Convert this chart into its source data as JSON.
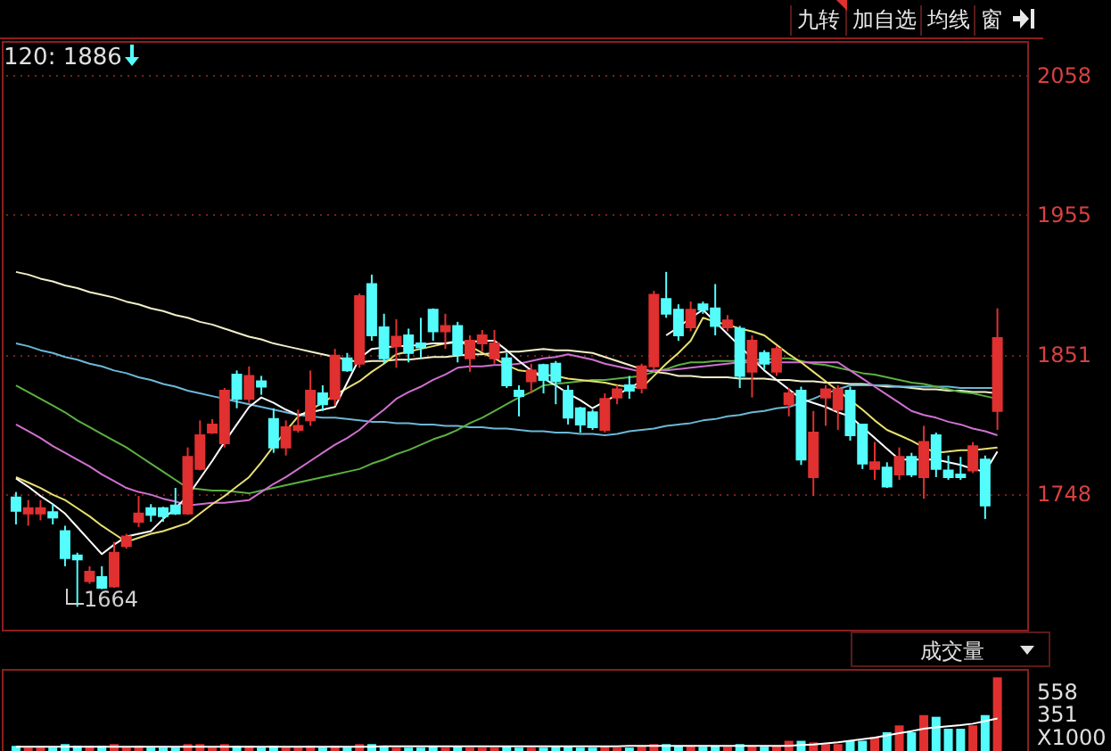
{
  "chart_data": [
    {
      "type": "candlestick",
      "annotations": [
        "120: 1886",
        "九转",
        "加自选",
        "均线",
        "窗",
        "1664"
      ],
      "categories": [
        null,
        null,
        null,
        null,
        null,
        null,
        null,
        null,
        null,
        null,
        null,
        null,
        null,
        null,
        null,
        null,
        null,
        null,
        null,
        null,
        null,
        null,
        null,
        null,
        null,
        null,
        null,
        null,
        null,
        null,
        null,
        null,
        null,
        null,
        null,
        null,
        null,
        null,
        null,
        null,
        null,
        null,
        null,
        null,
        null,
        null,
        null,
        null,
        null,
        null,
        null,
        null,
        null,
        null,
        null,
        null,
        null,
        null,
        null,
        null,
        null,
        null,
        null,
        null,
        null,
        null,
        null,
        null,
        null,
        null,
        null,
        null,
        null,
        null,
        null,
        null,
        null,
        null,
        null,
        null,
        null
      ],
      "ohlc": [
        [
          1745,
          1749,
          1725,
          1735
        ],
        [
          1733,
          1743,
          1724,
          1737
        ],
        [
          1733,
          1743,
          1728,
          1737
        ],
        [
          1734,
          1740,
          1725,
          1730
        ],
        [
          1720,
          1724,
          1694,
          1700
        ],
        [
          1702,
          1704,
          1664,
          1699
        ],
        [
          1683,
          1694,
          1681,
          1690
        ],
        [
          1686,
          1694,
          1677,
          1678
        ],
        [
          1679,
          1712,
          1678,
          1704
        ],
        [
          1709,
          1718,
          1707,
          1716
        ],
        [
          1727,
          1746,
          1723,
          1733
        ],
        [
          1737,
          1740,
          1727,
          1732
        ],
        [
          1737,
          1738,
          1727,
          1731
        ],
        [
          1739,
          1752,
          1732,
          1733
        ],
        [
          1733,
          1782,
          1732,
          1775
        ],
        [
          1766,
          1802,
          1765,
          1791
        ],
        [
          1793,
          1803,
          1792,
          1799
        ],
        [
          1785,
          1826,
          1782,
          1824
        ],
        [
          1836,
          1839,
          1811,
          1818
        ],
        [
          1818,
          1842,
          1815,
          1835
        ],
        [
          1831,
          1835,
          1821,
          1827
        ],
        [
          1803,
          1811,
          1778,
          1782
        ],
        [
          1782,
          1802,
          1776,
          1797
        ],
        [
          1795,
          1810,
          1793,
          1798
        ],
        [
          1802,
          1839,
          1798,
          1824
        ],
        [
          1822,
          1828,
          1809,
          1814
        ],
        [
          1818,
          1855,
          1813,
          1850
        ],
        [
          1848,
          1852,
          1838,
          1839
        ],
        [
          1844,
          1896,
          1841,
          1894
        ],
        [
          1903,
          1910,
          1861,
          1865
        ],
        [
          1871,
          1881,
          1844,
          1848
        ],
        [
          1857,
          1877,
          1841,
          1864
        ],
        [
          1865,
          1870,
          1845,
          1852
        ],
        [
          1859,
          1878,
          1848,
          1856
        ],
        [
          1884,
          1885,
          1861,
          1868
        ],
        [
          1868,
          1881,
          1855,
          1872
        ],
        [
          1872,
          1875,
          1845,
          1851
        ],
        [
          1848,
          1865,
          1838,
          1861
        ],
        [
          1859,
          1869,
          1853,
          1865
        ],
        [
          1848,
          1869,
          1844,
          1859
        ],
        [
          1848,
          1852,
          1826,
          1828
        ],
        [
          1824,
          1828,
          1805,
          1820
        ],
        [
          1831,
          1844,
          1822,
          1839
        ],
        [
          1843,
          1844,
          1822,
          1832
        ],
        [
          1844,
          1846,
          1814,
          1831
        ],
        [
          1824,
          1828,
          1799,
          1804
        ],
        [
          1811,
          1812,
          1793,
          1799
        ],
        [
          1808,
          1810,
          1795,
          1797
        ],
        [
          1795,
          1822,
          1793,
          1818
        ],
        [
          1819,
          1828,
          1814,
          1825
        ],
        [
          1828,
          1835,
          1818,
          1824
        ],
        [
          1826,
          1844,
          1822,
          1842
        ],
        [
          1842,
          1898,
          1839,
          1895
        ],
        [
          1892,
          1912,
          1878,
          1881
        ],
        [
          1884,
          1888,
          1861,
          1865
        ],
        [
          1871,
          1890,
          1868,
          1884
        ],
        [
          1888,
          1890,
          1881,
          1884
        ],
        [
          1885,
          1903,
          1865,
          1872
        ],
        [
          1871,
          1880,
          1868,
          1876
        ],
        [
          1870,
          1872,
          1826,
          1835
        ],
        [
          1838,
          1865,
          1819,
          1861
        ],
        [
          1852,
          1854,
          1840,
          1844
        ],
        [
          1838,
          1857,
          1835,
          1855
        ],
        [
          1814,
          1826,
          1805,
          1822
        ],
        [
          1824,
          1827,
          1769,
          1773
        ],
        [
          1760,
          1809,
          1746,
          1793
        ],
        [
          1819,
          1828,
          1798,
          1825
        ],
        [
          1810,
          1828,
          1795,
          1825
        ],
        [
          1824,
          1827,
          1787,
          1791
        ],
        [
          1799,
          1799,
          1766,
          1770
        ],
        [
          1766,
          1786,
          1758,
          1771
        ],
        [
          1767,
          1771,
          1752,
          1753
        ],
        [
          1762,
          1782,
          1758,
          1775
        ],
        [
          1775,
          1778,
          1760,
          1762
        ],
        [
          1760,
          1798,
          1744,
          1786
        ],
        [
          1791,
          1793,
          1760,
          1766
        ],
        [
          1765,
          1776,
          1758,
          1760
        ],
        [
          1762,
          1775,
          1758,
          1760
        ],
        [
          1765,
          1786,
          1763,
          1783
        ],
        [
          1773,
          1776,
          1729,
          1739
        ],
        [
          1809,
          1885,
          1795,
          1863
        ]
      ],
      "series": [
        {
          "type": "line",
          "color": "#f2f0c8",
          "values": [
            1912,
            1910,
            1907,
            1905,
            1902,
            1900,
            1897,
            1895,
            1893,
            1890,
            1888,
            1885,
            1883,
            1880,
            1878,
            1875,
            1873,
            1870,
            1867,
            1864,
            1862,
            1859,
            1857,
            1855,
            1853,
            1851,
            1849,
            1847,
            1845,
            1846,
            1846,
            1847,
            1847,
            1848,
            1849,
            1849,
            1850,
            1851,
            1851,
            1852,
            1853,
            1853,
            1854,
            1855,
            1854,
            1854,
            1853,
            1852,
            1849,
            1846,
            1843,
            1840,
            1838,
            1837,
            1835,
            1835,
            1834,
            1834,
            1834,
            1833,
            1833,
            1833,
            1832,
            1832,
            1831,
            1831,
            1830,
            1830,
            1829,
            1829,
            1828,
            1827,
            1827,
            1826,
            1825,
            1825,
            1824,
            1824,
            1823,
            1823,
            1822
          ]
        },
        {
          "type": "line",
          "color": "#6cb8d8",
          "values": [
            1859,
            1857,
            1854,
            1852,
            1849,
            1847,
            1844,
            1842,
            1839,
            1837,
            1834,
            1832,
            1829,
            1827,
            1824,
            1822,
            1820,
            1818,
            1816,
            1814,
            1812,
            1810,
            1808,
            1806,
            1805,
            1804,
            1804,
            1803,
            1802,
            1801,
            1801,
            1800,
            1800,
            1799,
            1799,
            1798,
            1798,
            1797,
            1797,
            1796,
            1796,
            1795,
            1794,
            1794,
            1793,
            1793,
            1792,
            1792,
            1791,
            1792,
            1794,
            1795,
            1796,
            1798,
            1799,
            1800,
            1802,
            1803,
            1805,
            1806,
            1808,
            1809,
            1811,
            1812,
            1815,
            1818,
            1822,
            1825,
            1828,
            1828,
            1828,
            1828,
            1827,
            1827,
            1827,
            1827,
            1827,
            1826,
            1826,
            1826,
            1826
          ]
        },
        {
          "type": "line",
          "color": "#5cb040",
          "values": [
            1828,
            1823,
            1818,
            1813,
            1808,
            1802,
            1797,
            1792,
            1787,
            1782,
            1776,
            1770,
            1764,
            1758,
            1752,
            1751,
            1750,
            1750,
            1749,
            1748,
            1750,
            1752,
            1754,
            1756,
            1758,
            1760,
            1762,
            1764,
            1766,
            1770,
            1773,
            1777,
            1780,
            1784,
            1788,
            1791,
            1795,
            1800,
            1804,
            1809,
            1814,
            1819,
            1823,
            1828,
            1829,
            1830,
            1831,
            1832,
            1832,
            1833,
            1834,
            1835,
            1838,
            1840,
            1843,
            1845,
            1845,
            1846,
            1846,
            1846,
            1847,
            1847,
            1848,
            1848,
            1846,
            1844,
            1843,
            1841,
            1839,
            1837,
            1836,
            1834,
            1832,
            1830,
            1829,
            1827,
            1825,
            1823,
            1822,
            1820,
            1818
          ]
        },
        {
          "type": "line",
          "color": "#d070d0",
          "values": [
            1799,
            1794,
            1789,
            1783,
            1778,
            1773,
            1768,
            1762,
            1757,
            1752,
            1749,
            1747,
            1744,
            1742,
            1739,
            1740,
            1741,
            1741,
            1742,
            1743,
            1749,
            1755,
            1760,
            1766,
            1772,
            1778,
            1784,
            1789,
            1795,
            1803,
            1810,
            1818,
            1823,
            1827,
            1832,
            1836,
            1841,
            1842,
            1842,
            1843,
            1843,
            1844,
            1846,
            1848,
            1849,
            1851,
            1849,
            1847,
            1844,
            1842,
            1840,
            1838,
            1839,
            1839,
            1840,
            1841,
            1842,
            1843,
            1844,
            1845,
            1845,
            1845,
            1845,
            1845,
            1845,
            1845,
            1845,
            1845,
            1839,
            1833,
            1827,
            1821,
            1815,
            1809,
            1806,
            1804,
            1801,
            1799,
            1796,
            1794,
            1791
          ]
        },
        {
          "type": "line",
          "color": "#e8e070",
          "values": [
            1760,
            1756,
            1752,
            1747,
            1743,
            1737,
            1731,
            1724,
            1718,
            1712,
            1715,
            1718,
            1720,
            1723,
            1726,
            1733,
            1740,
            1746,
            1753,
            1760,
            1771,
            1783,
            1794,
            1805,
            1810,
            1815,
            1821,
            1826,
            1831,
            1838,
            1844,
            1851,
            1853,
            1855,
            1857,
            1859,
            1861,
            1857,
            1852,
            1848,
            1843,
            1839,
            1838,
            1836,
            1835,
            1833,
            1832,
            1831,
            1830,
            1828,
            1827,
            1826,
            1835,
            1844,
            1852,
            1861,
            1878,
            1875,
            1873,
            1870,
            1868,
            1865,
            1858,
            1851,
            1845,
            1838,
            1831,
            1824,
            1817,
            1810,
            1802,
            1795,
            1791,
            1787,
            1782,
            1778,
            1779,
            1780,
            1780,
            1781,
            1782
          ]
        },
        {
          "type": "line",
          "color": "#ffffff",
          "values": [
            1759,
            1753,
            1746,
            1740,
            1733,
            1723,
            1713,
            1703,
            1710,
            1716,
            1718,
            1720,
            1729,
            1737,
            1746,
            1759,
            1772,
            1786,
            1799,
            1812,
            1819,
            1815,
            1810,
            1806,
            1808,
            1810,
            1812,
            1830,
            1848,
            1855,
            1856,
            1857,
            1857,
            1858,
            1859,
            1859,
            1860,
            1860,
            1861,
            1861,
            1854,
            1846,
            1839,
            1833,
            1828,
            1822,
            1817,
            1811,
            1816,
            1821,
            1826,
            1831,
            null,
            1865,
            1871,
            1878,
            1884,
            1875,
            1866,
            1857,
            1848,
            1839,
            1832,
            1825,
            1818,
            1815,
            1812,
            1808,
            1805,
            1797,
            1789,
            1781,
            1773,
            1773,
            1773,
            1773,
            1771,
            1769,
            1766,
            1764,
            1779
          ]
        }
      ],
      "ylim": [
        1647,
        2083
      ],
      "yticks": [
        1748,
        1851,
        1955,
        2058
      ],
      "grid": "y",
      "tick_labels": "y"
    },
    {
      "type": "bar",
      "annotations": [
        "成交量"
      ],
      "ylabel": "X1000",
      "categories": [
        null,
        null,
        null,
        null,
        null,
        null,
        null,
        null,
        null,
        null,
        null,
        null,
        null,
        null,
        null,
        null,
        null,
        null,
        null,
        null,
        null,
        null,
        null,
        null,
        null,
        null,
        null,
        null,
        null,
        null,
        null,
        null,
        null,
        null,
        null,
        null,
        null,
        null,
        null,
        null,
        null,
        null,
        null,
        null,
        null,
        null,
        null,
        null,
        null,
        null,
        null,
        null,
        null,
        null,
        null,
        null,
        null,
        null,
        null,
        null,
        null,
        null,
        null,
        null,
        null,
        null,
        null,
        null,
        null,
        null,
        null,
        null,
        null,
        null,
        null,
        null,
        null,
        null,
        null,
        null,
        null
      ],
      "series": [
        {
          "type": "bar",
          "values": [
            48,
            32,
            32,
            32,
            64,
            48,
            48,
            48,
            64,
            32,
            48,
            32,
            32,
            32,
            64,
            64,
            32,
            64,
            48,
            48,
            32,
            48,
            32,
            32,
            48,
            32,
            48,
            32,
            64,
            64,
            48,
            32,
            32,
            32,
            48,
            32,
            48,
            32,
            32,
            32,
            48,
            32,
            32,
            32,
            48,
            48,
            32,
            32,
            48,
            32,
            32,
            48,
            64,
            64,
            48,
            48,
            40,
            48,
            40,
            64,
            48,
            40,
            48,
            95,
            95,
            80,
            64,
            64,
            95,
            95,
            127,
            175,
            238,
            175,
            334,
            318,
            207,
            207,
            238,
            334,
            685
          ],
          "colors": [
            "#54fcfc",
            "#e03030",
            "#e03030",
            "#54fcfc",
            "#54fcfc",
            "#54fcfc",
            "#e03030",
            "#54fcfc",
            "#e03030",
            "#e03030",
            "#e03030",
            "#54fcfc",
            "#54fcfc",
            "#54fcfc",
            "#e03030",
            "#e03030",
            "#e03030",
            "#e03030",
            "#54fcfc",
            "#e03030",
            "#54fcfc",
            "#54fcfc",
            "#e03030",
            "#e03030",
            "#e03030",
            "#54fcfc",
            "#e03030",
            "#54fcfc",
            "#e03030",
            "#54fcfc",
            "#54fcfc",
            "#e03030",
            "#54fcfc",
            "#54fcfc",
            "#54fcfc",
            "#e03030",
            "#54fcfc",
            "#e03030",
            "#e03030",
            "#e03030",
            "#54fcfc",
            "#54fcfc",
            "#e03030",
            "#54fcfc",
            "#54fcfc",
            "#54fcfc",
            "#54fcfc",
            "#54fcfc",
            "#e03030",
            "#e03030",
            "#54fcfc",
            "#e03030",
            "#e03030",
            "#54fcfc",
            "#54fcfc",
            "#e03030",
            "#54fcfc",
            "#54fcfc",
            "#e03030",
            "#54fcfc",
            "#e03030",
            "#54fcfc",
            "#e03030",
            "#e03030",
            "#54fcfc",
            "#e03030",
            "#e03030",
            "#e03030",
            "#54fcfc",
            "#54fcfc",
            "#e03030",
            "#54fcfc",
            "#e03030",
            "#54fcfc",
            "#e03030",
            "#54fcfc",
            "#54fcfc",
            "#54fcfc",
            "#e03030",
            "#54fcfc",
            "#e03030"
          ]
        },
        {
          "type": "line",
          "color": "#ffffff",
          "values": [
            40,
            40,
            40,
            40,
            40,
            40,
            40,
            40,
            40,
            40,
            40,
            40,
            40,
            40,
            40,
            40,
            40,
            40,
            40,
            40,
            40,
            40,
            40,
            40,
            40,
            40,
            40,
            40,
            40,
            40,
            44,
            44,
            44,
            44,
            44,
            44,
            44,
            44,
            44,
            44,
            44,
            44,
            44,
            44,
            44,
            44,
            44,
            44,
            44,
            44,
            48,
            48,
            48,
            48,
            48,
            48,
            48,
            48,
            48,
            48,
            48,
            48,
            48,
            48,
            55,
            60,
            70,
            80,
            95,
            110,
            125,
            145,
            165,
            185,
            207,
            220,
            230,
            240,
            254,
            278,
            302
          ]
        }
      ],
      "ylim": [
        0,
        763
      ],
      "yticks": [
        351,
        558
      ],
      "tick_labels": "y"
    }
  ]
}
